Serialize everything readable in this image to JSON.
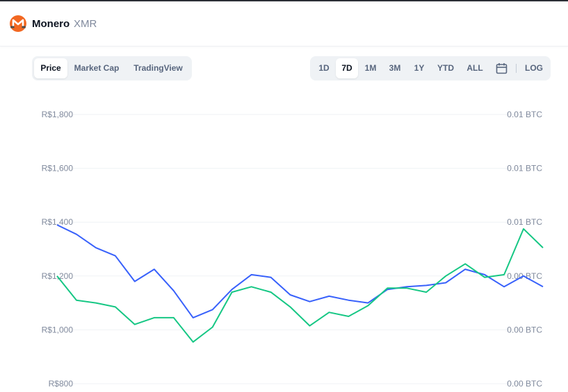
{
  "header": {
    "name": "Monero",
    "symbol": "XMR",
    "logo_icon": "monero-logo-icon",
    "logo_color": "#f26822"
  },
  "tabs_left": [
    {
      "label": "Price",
      "active": true
    },
    {
      "label": "Market Cap",
      "active": false
    },
    {
      "label": "TradingView",
      "active": false
    }
  ],
  "tabs_right": [
    {
      "label": "1D",
      "active": false
    },
    {
      "label": "7D",
      "active": true
    },
    {
      "label": "1M",
      "active": false
    },
    {
      "label": "3M",
      "active": false
    },
    {
      "label": "1Y",
      "active": false
    },
    {
      "label": "YTD",
      "active": false
    },
    {
      "label": "ALL",
      "active": false
    }
  ],
  "calendar_icon": "calendar-icon",
  "log_label": "LOG",
  "chart_data": {
    "type": "line",
    "title": "",
    "xlabel": "",
    "ylabel": "",
    "grid": true,
    "ylim": [
      800,
      1800
    ],
    "yticks_left": [
      "R$1,800",
      "R$1,600",
      "R$1,400",
      "R$1,200",
      "R$1,000",
      "R$800"
    ],
    "yticks_right": [
      "0.01 BTC",
      "0.01 BTC",
      "0.01 BTC",
      "0.00 BTC",
      "0.00 BTC",
      "0.00 BTC"
    ],
    "x": [
      0,
      0.04,
      0.08,
      0.12,
      0.16,
      0.2,
      0.24,
      0.28,
      0.32,
      0.36,
      0.4,
      0.44,
      0.48,
      0.52,
      0.56,
      0.6,
      0.64,
      0.68,
      0.72,
      0.76,
      0.8,
      0.84,
      0.88,
      0.92,
      0.96,
      1
    ],
    "series": [
      {
        "color": "#3861fb",
        "values": [
          1390,
          1355,
          1305,
          1275,
          1180,
          1225,
          1145,
          1045,
          1075,
          1150,
          1205,
          1195,
          1130,
          1105,
          1125,
          1110,
          1100,
          1150,
          1160,
          1165,
          1175,
          1225,
          1205,
          1160,
          1200,
          1160
        ]
      },
      {
        "color": "#16c784",
        "values": [
          1200,
          1110,
          1100,
          1085,
          1020,
          1045,
          1045,
          955,
          1010,
          1140,
          1160,
          1140,
          1085,
          1015,
          1065,
          1050,
          1090,
          1155,
          1155,
          1140,
          1200,
          1245,
          1195,
          1205,
          1375,
          1305
        ]
      }
    ]
  }
}
